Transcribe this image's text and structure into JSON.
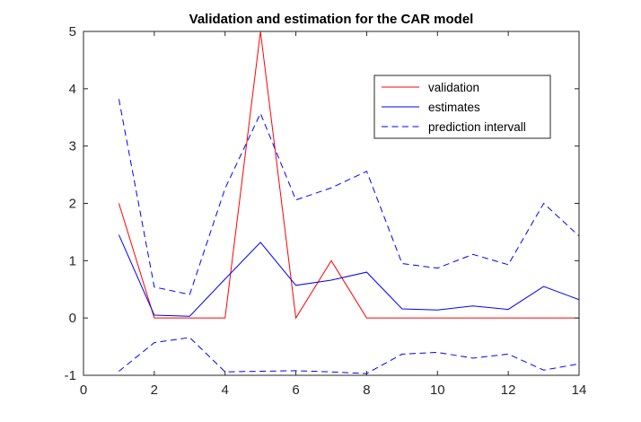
{
  "chart_data": {
    "type": "line",
    "title": "Validation and estimation for the CAR model",
    "xlabel": "",
    "ylabel": "",
    "xlim": [
      0,
      14
    ],
    "ylim": [
      -1,
      5
    ],
    "xticks": [
      0,
      2,
      4,
      6,
      8,
      10,
      12,
      14
    ],
    "yticks": [
      -1,
      0,
      1,
      2,
      3,
      4,
      5
    ],
    "grid": false,
    "legend_position": "top-right",
    "x": [
      1,
      2,
      3,
      4,
      5,
      6,
      7,
      8,
      9,
      10,
      11,
      12,
      13,
      14
    ],
    "series": [
      {
        "name": "validation",
        "color": "#ff0000",
        "style": "solid",
        "values": [
          2,
          0,
          0,
          0,
          5,
          0,
          1,
          0,
          0,
          0,
          0,
          0,
          0,
          0
        ]
      },
      {
        "name": "estimates",
        "color": "#0000ff",
        "style": "solid",
        "values": [
          1.45,
          0.05,
          0.03,
          0.68,
          1.32,
          0.57,
          0.66,
          0.8,
          0.16,
          0.14,
          0.21,
          0.15,
          0.55,
          0.32
        ]
      },
      {
        "name": "prediction intervall",
        "color": "#0000ff",
        "style": "dashed",
        "values": [
          3.82,
          0.54,
          0.41,
          2.26,
          3.57,
          2.06,
          2.27,
          2.56,
          0.95,
          0.87,
          1.11,
          0.93,
          2.0,
          1.43
        ]
      },
      {
        "name": "",
        "color": "#0000ff",
        "style": "dashed",
        "legend": false,
        "values": [
          -0.93,
          -0.43,
          -0.34,
          -0.94,
          -0.93,
          -0.92,
          -0.94,
          -0.97,
          -0.63,
          -0.6,
          -0.7,
          -0.63,
          -0.91,
          -0.8
        ]
      }
    ]
  }
}
